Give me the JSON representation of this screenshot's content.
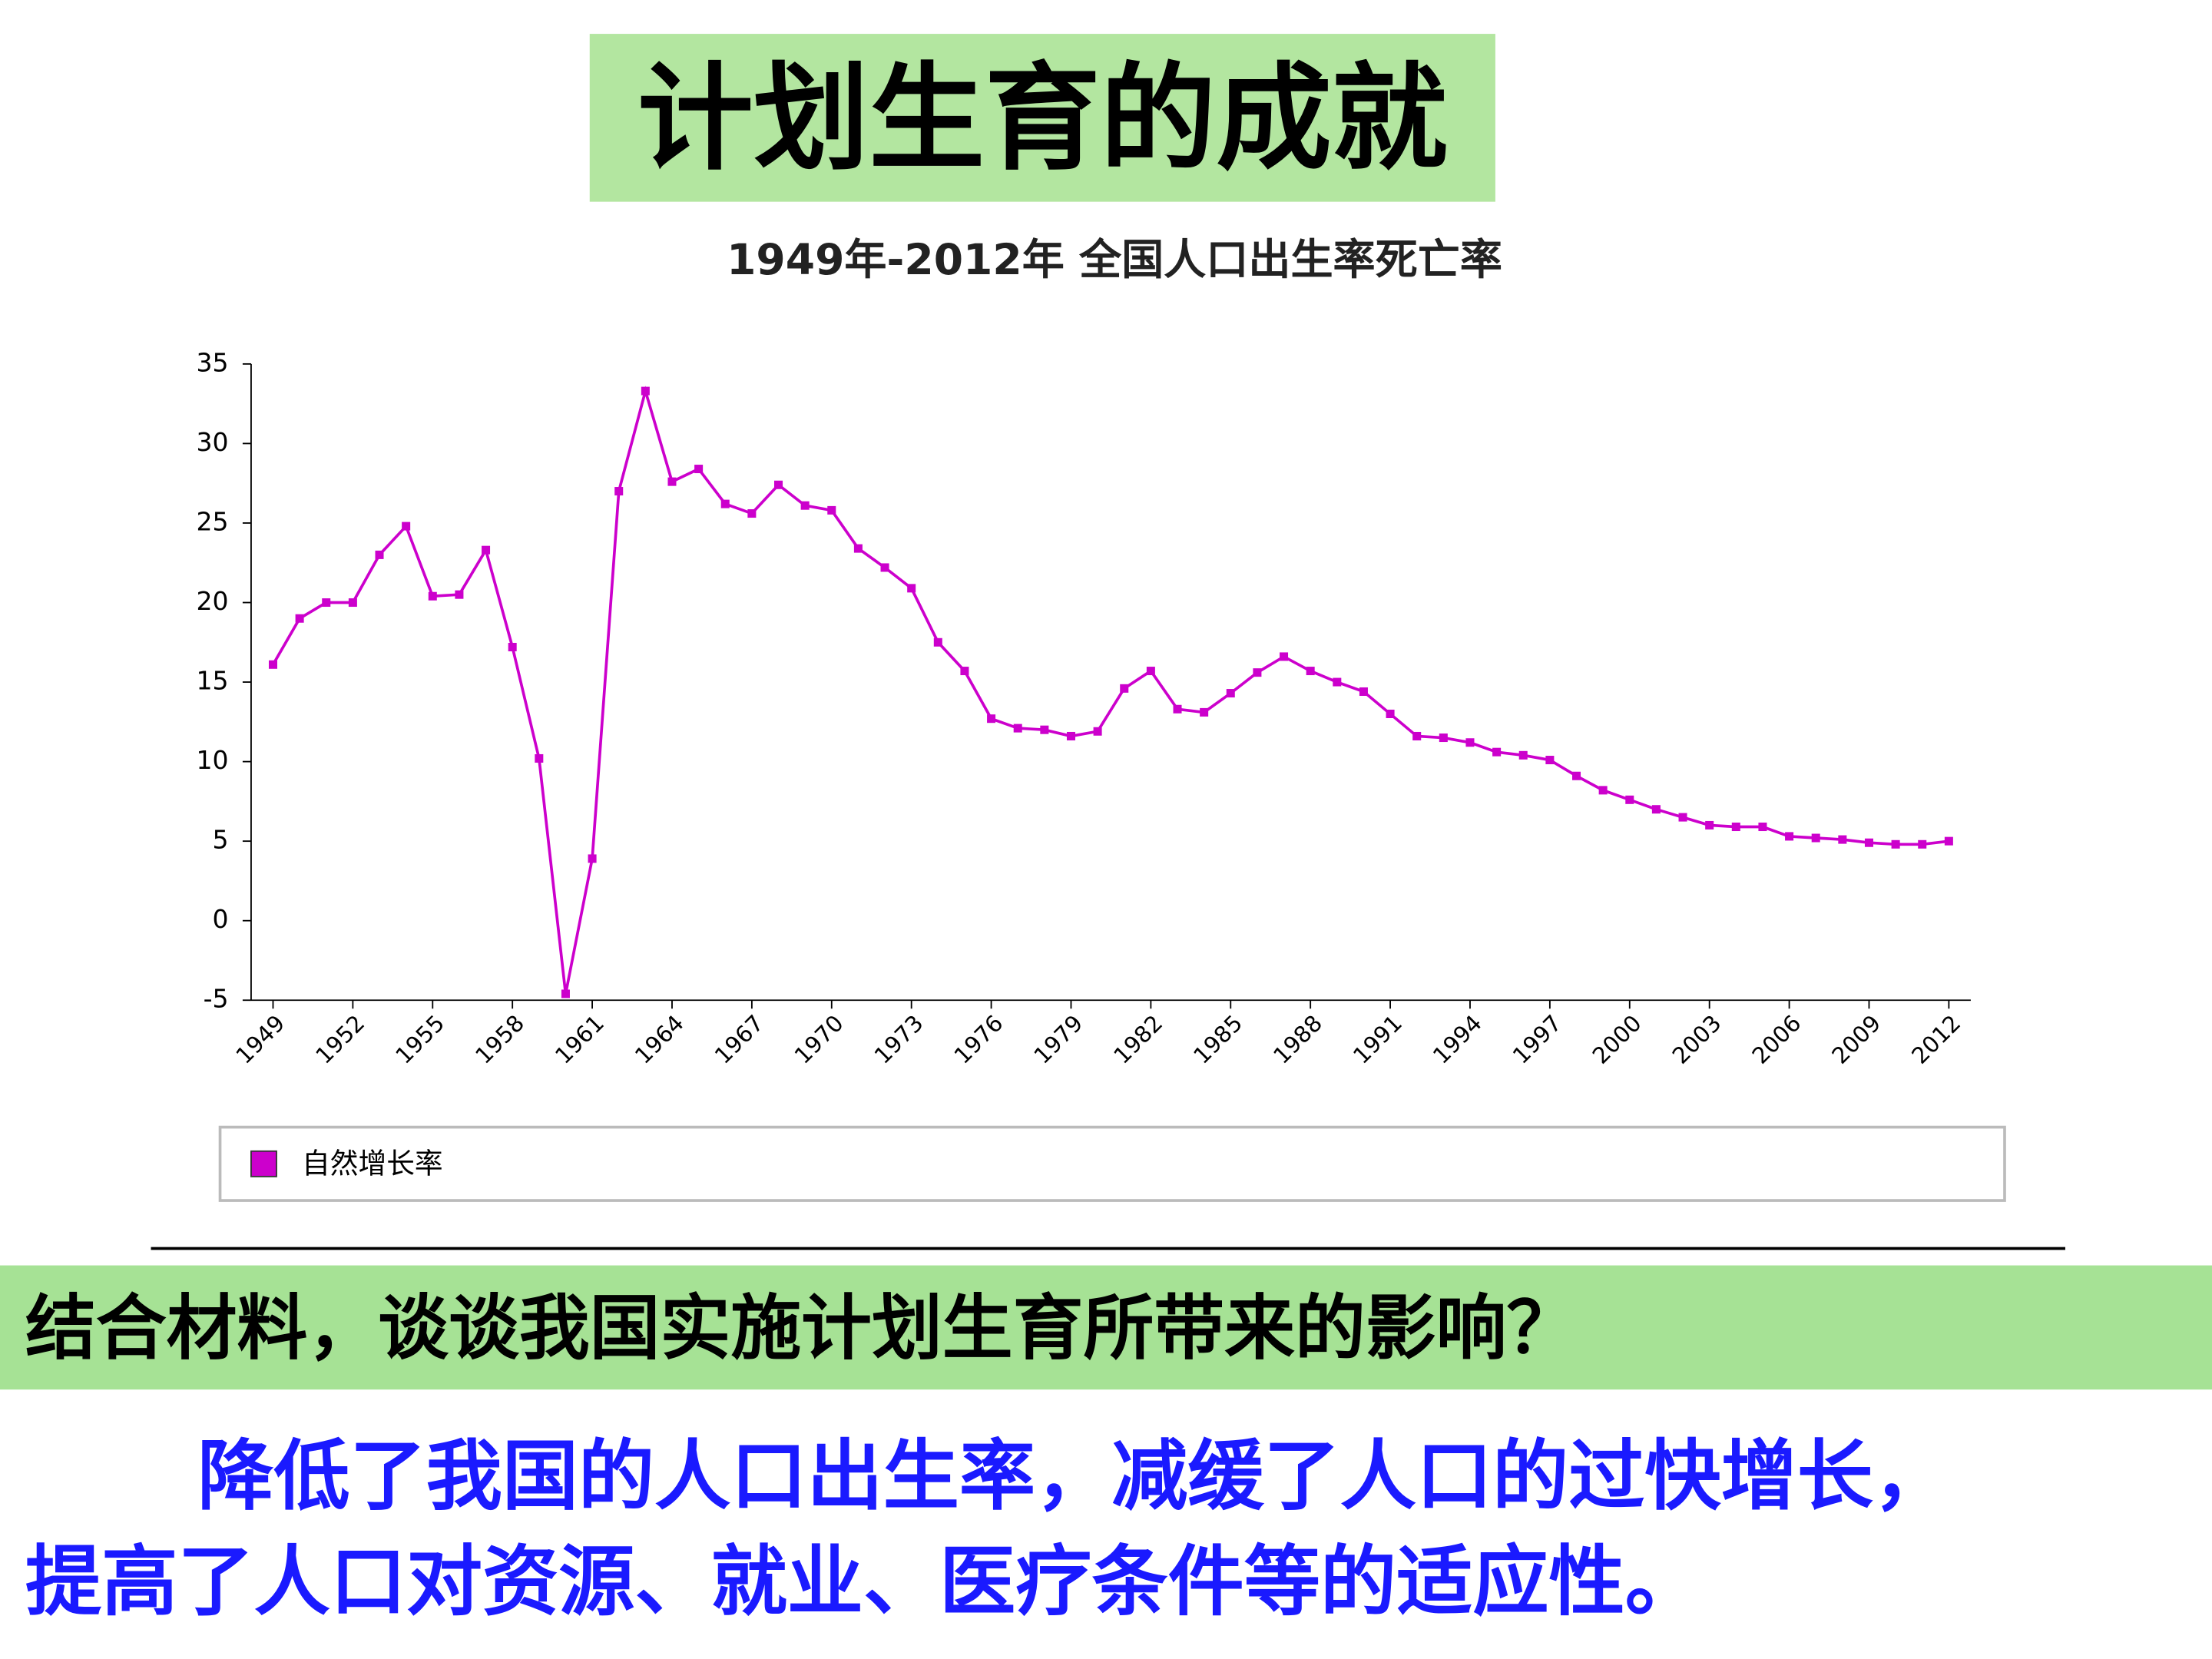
{
  "title": "计划生育的成就",
  "chart_data": {
    "type": "line",
    "title": "1949年-2012年 全国人口出生率死亡率",
    "x": [
      1949,
      1950,
      1951,
      1952,
      1953,
      1954,
      1955,
      1956,
      1957,
      1958,
      1959,
      1960,
      1961,
      1962,
      1963,
      1964,
      1965,
      1966,
      1967,
      1968,
      1969,
      1970,
      1971,
      1972,
      1973,
      1974,
      1975,
      1976,
      1977,
      1978,
      1979,
      1980,
      1981,
      1982,
      1983,
      1984,
      1985,
      1986,
      1987,
      1988,
      1989,
      1990,
      1991,
      1992,
      1993,
      1994,
      1995,
      1996,
      1997,
      1998,
      1999,
      2000,
      2001,
      2002,
      2003,
      2004,
      2005,
      2006,
      2007,
      2008,
      2009,
      2010,
      2011,
      2012
    ],
    "series": [
      {
        "name": "自然增长率",
        "color": "#cc00cc",
        "values": [
          16.1,
          19.0,
          20.0,
          20.0,
          23.0,
          24.8,
          20.4,
          20.5,
          23.3,
          17.2,
          10.2,
          -4.6,
          3.9,
          27.0,
          33.3,
          27.6,
          28.4,
          26.2,
          25.6,
          27.4,
          26.1,
          25.8,
          23.4,
          22.2,
          20.9,
          17.5,
          15.7,
          12.7,
          12.1,
          12.0,
          11.6,
          11.9,
          14.6,
          15.7,
          13.3,
          13.1,
          14.3,
          15.6,
          16.6,
          15.7,
          15.0,
          14.4,
          13.0,
          11.6,
          11.5,
          11.2,
          10.6,
          10.4,
          10.1,
          9.1,
          8.2,
          7.6,
          7.0,
          6.5,
          6.0,
          5.9,
          5.9,
          5.3,
          5.2,
          5.1,
          4.9,
          4.8,
          4.8,
          5.0
        ]
      }
    ],
    "xlim": [
      1948.6,
      2012.4
    ],
    "xticks": [
      1949,
      1952,
      1955,
      1958,
      1961,
      1964,
      1967,
      1970,
      1973,
      1976,
      1979,
      1982,
      1985,
      1988,
      1991,
      1994,
      1997,
      2000,
      2003,
      2006,
      2009,
      2012
    ],
    "ylim": [
      -5,
      35
    ],
    "yticks": [
      -5,
      0,
      5,
      10,
      15,
      20,
      25,
      30,
      35
    ]
  },
  "question": "结合材料，谈谈我国实施计划生育所带来的影响？",
  "answer": [
    "降低了我国的人口出生率，减缓了人口的过快增长，",
    "提高了人口对资源、就业、医疗条件等的适应性。"
  ]
}
